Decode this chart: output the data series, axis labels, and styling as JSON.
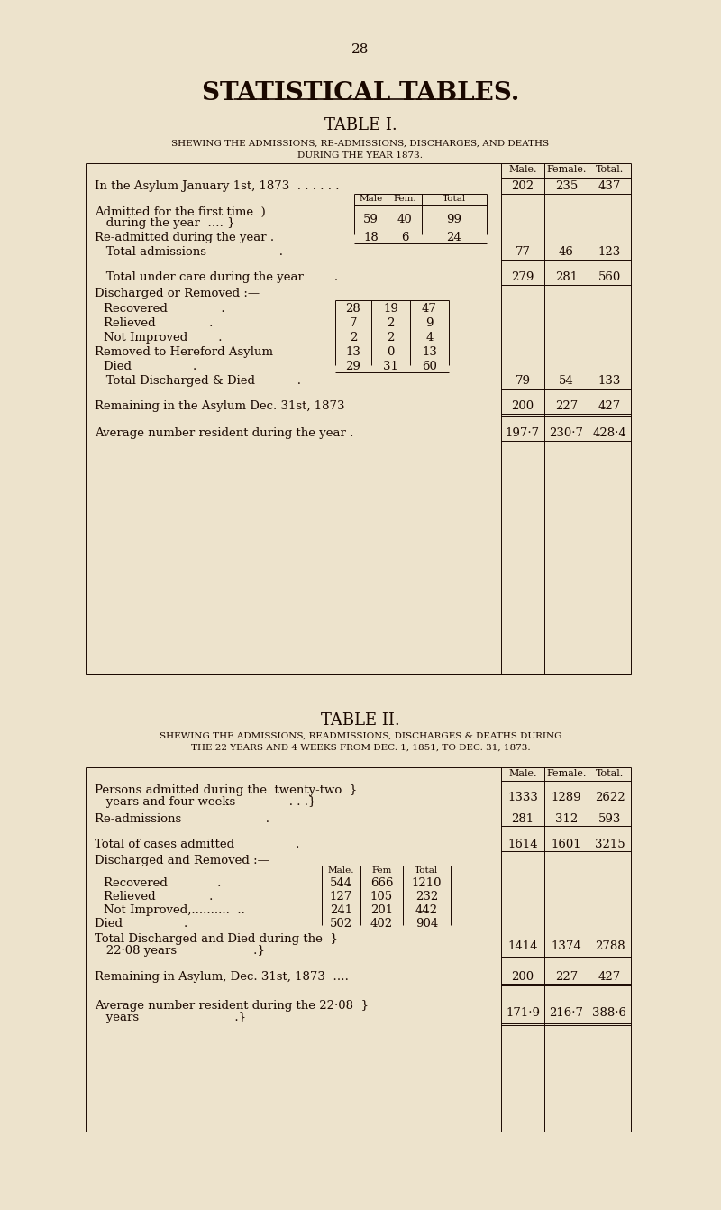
{
  "bg_color": "#ede3cc",
  "text_color": "#1a0800",
  "page_number": "28",
  "main_title": "STATISTICAL TABLES.",
  "table1_title": "TABLE I.",
  "table1_sub1": "SHEWING THE ADMISSIONS, RE-ADMISSIONS, DISCHARGES, AND DEATHS",
  "table1_sub2": "DURING THE YEAR 1873.",
  "table2_title": "TABLE II.",
  "table2_sub1": "SHEWING THE ADMISSIONS, READMISSIONS, DISCHARGES & DEATHS DURING",
  "table2_sub2": "THE 22 YEARS AND 4 WEEKS FROM DEC. 1, 1851, TO DEC. 31, 1873."
}
